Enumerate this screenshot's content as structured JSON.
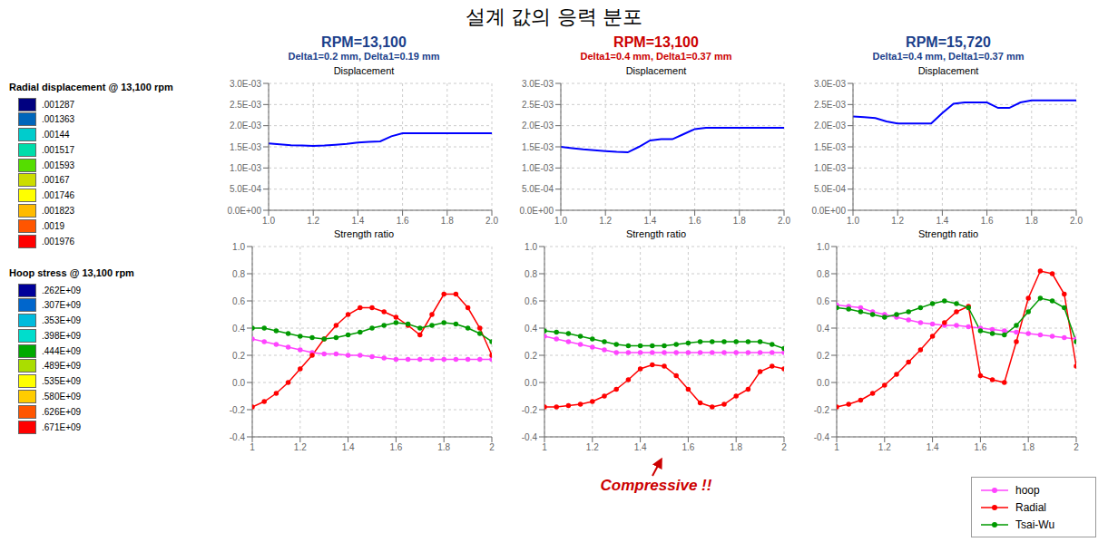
{
  "title": "설계 값의 응력 분포",
  "legend": "lower right",
  "colorbars": [
    {
      "title": "Radial displacement @ 13,100 rpm",
      "ticks": [
        {
          "value": 0.001287,
          "label": ".001287"
        },
        {
          "value": 0.001363,
          "label": ".001363"
        },
        {
          "value": 0.00144,
          "label": ".00144"
        },
        {
          "value": 0.001517,
          "label": ".001517"
        },
        {
          "value": 0.001593,
          "label": ".001593"
        },
        {
          "value": 0.00167,
          "label": ".00167"
        },
        {
          "value": 0.001746,
          "label": ".001746"
        },
        {
          "value": 0.001823,
          "label": ".001823"
        },
        {
          "value": 0.0019,
          "label": ".0019"
        },
        {
          "value": 0.001976,
          "label": ".001976"
        }
      ],
      "colors": [
        "#000080",
        "#0066BB",
        "#00CCCC",
        "#00DDAA",
        "#55DD00",
        "#CCDD00",
        "#FFFF00",
        "#FFBB00",
        "#FF5500",
        "#FF0000"
      ]
    },
    {
      "title": "Hoop stress @ 13,100 rpm",
      "ticks": [
        {
          "value": 262000000,
          "label": ".262E+09"
        },
        {
          "value": 307000000,
          "label": ".307E+09"
        },
        {
          "value": 353000000,
          "label": ".353E+09"
        },
        {
          "value": 398000000,
          "label": ".398E+09"
        },
        {
          "value": 444000000,
          "label": ".444E+09"
        },
        {
          "value": 489000000,
          "label": ".489E+09"
        },
        {
          "value": 535000000,
          "label": ".535E+09"
        },
        {
          "value": 580000000,
          "label": ".580E+09"
        },
        {
          "value": 626000000,
          "label": ".626E+09"
        },
        {
          "value": 671000000,
          "label": ".671E+09"
        }
      ],
      "colors": [
        "#000099",
        "#0066CC",
        "#00BBDD",
        "#00DDCC",
        "#00AA00",
        "#AADD00",
        "#FFFF00",
        "#FFCC00",
        "#FF5500",
        "#FF0000"
      ]
    }
  ],
  "columns": [
    {
      "title": "RPM=13,100",
      "subtitle": "Delta1=0.2 mm, Delta1=0.19 mm",
      "color": "#1B3F8B"
    },
    {
      "title": "RPM=13,100",
      "subtitle": "Delta1=0.4 mm, Delta1=0.37 mm",
      "color": "#CC0000"
    },
    {
      "title": "RPM=15,720",
      "subtitle": "Delta1=0.4 mm, Delta1=0.37 mm",
      "color": "#1B3F8B"
    }
  ],
  "chart_data": [
    {
      "type": "line",
      "title": "Displacement",
      "grid": true,
      "x": [
        1.0,
        1.05,
        1.1,
        1.15,
        1.2,
        1.25,
        1.3,
        1.35,
        1.4,
        1.45,
        1.5,
        1.55,
        1.6,
        1.65,
        1.7,
        1.75,
        1.8,
        1.85,
        1.9,
        1.95,
        2.0
      ],
      "xlim": [
        1.0,
        2.0
      ],
      "xticks": [
        {
          "value": 1.0,
          "label": "1.0"
        },
        1.2,
        1.4,
        1.6,
        1.8,
        {
          "value": 2.0,
          "label": "2.0"
        }
      ],
      "ylim": [
        0.0,
        0.003
      ],
      "yticks": [
        {
          "value": 0,
          "label": "0.0E+00"
        },
        {
          "value": 0.0005,
          "label": "5.0E-04"
        },
        {
          "value": 0.001,
          "label": "1.0E-03"
        },
        {
          "value": 0.0015,
          "label": "1.5E-03"
        },
        {
          "value": 0.002,
          "label": "2.0E-03"
        },
        {
          "value": 0.0025,
          "label": "2.5E-03"
        },
        {
          "value": 0.003,
          "label": "3.0E-03"
        }
      ],
      "series": [
        {
          "color": "#0000FF",
          "values": [
            0.00158,
            0.00156,
            0.00154,
            0.00153,
            0.00152,
            0.00153,
            0.00155,
            0.00157,
            0.0016,
            0.00162,
            0.00163,
            0.00175,
            0.00182,
            0.00182,
            0.00182,
            0.00182,
            0.00182,
            0.00182,
            0.00182,
            0.00182,
            0.00182
          ]
        }
      ]
    },
    {
      "type": "line",
      "title": "Strength ratio",
      "grid": true,
      "x": [
        1.0,
        1.05,
        1.1,
        1.15,
        1.2,
        1.25,
        1.3,
        1.35,
        1.4,
        1.45,
        1.5,
        1.55,
        1.6,
        1.65,
        1.7,
        1.75,
        1.8,
        1.85,
        1.9,
        1.95,
        2.0
      ],
      "xlim": [
        1.0,
        2.0
      ],
      "xticks": [
        1,
        1.2,
        1.4,
        1.6,
        1.8,
        2
      ],
      "ylim": [
        -0.4,
        1.0
      ],
      "yticks": [
        -0.4,
        -0.2,
        {
          "value": 0,
          "label": "0.0"
        },
        0.2,
        0.4,
        0.6,
        0.8,
        {
          "value": 1,
          "label": "1.0"
        }
      ],
      "series": [
        {
          "name": "hoop",
          "color": "#FF44FF",
          "marker": "circle",
          "values": [
            0.32,
            0.3,
            0.28,
            0.26,
            0.24,
            0.22,
            0.21,
            0.21,
            0.2,
            0.2,
            0.19,
            0.18,
            0.17,
            0.17,
            0.17,
            0.17,
            0.17,
            0.17,
            0.17,
            0.17,
            0.17
          ]
        },
        {
          "name": "Radial",
          "color": "#FF0000",
          "marker": "circle",
          "values": [
            -0.18,
            -0.14,
            -0.08,
            0.0,
            0.1,
            0.2,
            0.32,
            0.42,
            0.5,
            0.55,
            0.55,
            0.52,
            0.48,
            0.42,
            0.35,
            0.5,
            0.65,
            0.65,
            0.55,
            0.4,
            0.2
          ]
        },
        {
          "name": "Tsai-Wu",
          "color": "#009900",
          "marker": "circle",
          "values": [
            0.4,
            0.4,
            0.38,
            0.36,
            0.34,
            0.33,
            0.32,
            0.33,
            0.35,
            0.37,
            0.4,
            0.42,
            0.44,
            0.43,
            0.4,
            0.42,
            0.44,
            0.43,
            0.4,
            0.36,
            0.3
          ]
        }
      ]
    },
    {
      "type": "line",
      "title": "Displacement",
      "grid": true,
      "x": [
        1.0,
        1.05,
        1.1,
        1.15,
        1.2,
        1.25,
        1.3,
        1.35,
        1.4,
        1.45,
        1.5,
        1.55,
        1.6,
        1.65,
        1.7,
        1.75,
        1.8,
        1.85,
        1.9,
        1.95,
        2.0
      ],
      "xlim": [
        1.0,
        2.0
      ],
      "xticks": [
        {
          "value": 1.0,
          "label": "1.0"
        },
        1.2,
        1.4,
        1.6,
        1.8,
        {
          "value": 2.0,
          "label": "2.0"
        }
      ],
      "ylim": [
        0.0,
        0.003
      ],
      "yticks": [
        {
          "value": 0,
          "label": "0.0E+00"
        },
        {
          "value": 0.0005,
          "label": "5.0E-04"
        },
        {
          "value": 0.001,
          "label": "1.0E-03"
        },
        {
          "value": 0.0015,
          "label": "1.5E-03"
        },
        {
          "value": 0.002,
          "label": "2.0E-03"
        },
        {
          "value": 0.0025,
          "label": "2.5E-03"
        },
        {
          "value": 0.003,
          "label": "3.0E-03"
        }
      ],
      "series": [
        {
          "color": "#0000FF",
          "values": [
            0.0015,
            0.00147,
            0.00144,
            0.00142,
            0.0014,
            0.00138,
            0.00137,
            0.0015,
            0.00165,
            0.00168,
            0.00168,
            0.0018,
            0.00192,
            0.00195,
            0.00195,
            0.00195,
            0.00195,
            0.00195,
            0.00195,
            0.00195,
            0.00195
          ]
        }
      ]
    },
    {
      "type": "line",
      "title": "Strength ratio",
      "grid": true,
      "x": [
        1.0,
        1.05,
        1.1,
        1.15,
        1.2,
        1.25,
        1.3,
        1.35,
        1.4,
        1.45,
        1.5,
        1.55,
        1.6,
        1.65,
        1.7,
        1.75,
        1.8,
        1.85,
        1.9,
        1.95,
        2.0
      ],
      "xlim": [
        1.0,
        2.0
      ],
      "xticks": [
        1,
        1.2,
        1.4,
        1.6,
        1.8,
        2
      ],
      "ylim": [
        -0.4,
        1.0
      ],
      "yticks": [
        -0.4,
        -0.2,
        {
          "value": 0,
          "label": "0.0"
        },
        0.2,
        0.4,
        0.6,
        0.8,
        {
          "value": 1,
          "label": "1.0"
        }
      ],
      "annotations": [
        {
          "text": "Compressive !!",
          "color": "#CC0000"
        }
      ],
      "series": [
        {
          "name": "hoop",
          "color": "#FF44FF",
          "marker": "circle",
          "values": [
            0.34,
            0.32,
            0.3,
            0.28,
            0.26,
            0.24,
            0.22,
            0.22,
            0.22,
            0.22,
            0.22,
            0.22,
            0.22,
            0.22,
            0.22,
            0.22,
            0.22,
            0.22,
            0.22,
            0.22,
            0.22
          ]
        },
        {
          "name": "Radial",
          "color": "#FF0000",
          "marker": "circle",
          "values": [
            -0.18,
            -0.18,
            -0.17,
            -0.16,
            -0.14,
            -0.1,
            -0.05,
            0.02,
            0.1,
            0.13,
            0.12,
            0.05,
            -0.05,
            -0.15,
            -0.18,
            -0.16,
            -0.1,
            -0.05,
            0.08,
            0.12,
            0.1
          ]
        },
        {
          "name": "Tsai-Wu",
          "color": "#009900",
          "marker": "circle",
          "values": [
            0.38,
            0.37,
            0.36,
            0.34,
            0.32,
            0.3,
            0.28,
            0.27,
            0.27,
            0.27,
            0.27,
            0.28,
            0.29,
            0.3,
            0.3,
            0.3,
            0.3,
            0.3,
            0.3,
            0.28,
            0.25
          ]
        }
      ]
    },
    {
      "type": "line",
      "title": "Displacement",
      "grid": true,
      "x": [
        1.0,
        1.05,
        1.1,
        1.15,
        1.2,
        1.25,
        1.3,
        1.35,
        1.4,
        1.45,
        1.5,
        1.55,
        1.6,
        1.65,
        1.7,
        1.75,
        1.8,
        1.85,
        1.9,
        1.95,
        2.0
      ],
      "xlim": [
        1.0,
        2.0
      ],
      "xticks": [
        {
          "value": 1.0,
          "label": "1.0"
        },
        1.2,
        1.4,
        1.6,
        1.8,
        {
          "value": 2.0,
          "label": "2.0"
        }
      ],
      "ylim": [
        0.0,
        0.003
      ],
      "yticks": [
        {
          "value": 0,
          "label": "0.0E+00"
        },
        {
          "value": 0.0005,
          "label": "5.0E-04"
        },
        {
          "value": 0.001,
          "label": "1.0E-03"
        },
        {
          "value": 0.0015,
          "label": "1.5E-03"
        },
        {
          "value": 0.002,
          "label": "2.0E-03"
        },
        {
          "value": 0.0025,
          "label": "2.5E-03"
        },
        {
          "value": 0.003,
          "label": "3.0E-03"
        }
      ],
      "series": [
        {
          "color": "#0000FF",
          "values": [
            0.00222,
            0.0022,
            0.00218,
            0.0021,
            0.00205,
            0.00205,
            0.00205,
            0.00205,
            0.0023,
            0.00252,
            0.00255,
            0.00255,
            0.00255,
            0.00242,
            0.00242,
            0.00255,
            0.0026,
            0.0026,
            0.0026,
            0.0026,
            0.0026
          ]
        }
      ]
    },
    {
      "type": "line",
      "title": "Strength ratio",
      "grid": true,
      "x": [
        1.0,
        1.05,
        1.1,
        1.15,
        1.2,
        1.25,
        1.3,
        1.35,
        1.4,
        1.45,
        1.5,
        1.55,
        1.6,
        1.65,
        1.7,
        1.75,
        1.8,
        1.85,
        1.9,
        1.95,
        2.0
      ],
      "xlim": [
        1.0,
        2.0
      ],
      "xticks": [
        1,
        1.2,
        1.4,
        1.6,
        1.8,
        2
      ],
      "ylim": [
        -0.4,
        1.0
      ],
      "yticks": [
        -0.4,
        -0.2,
        {
          "value": 0,
          "label": "0.0"
        },
        0.2,
        0.4,
        0.6,
        0.8,
        {
          "value": 1,
          "label": "1.0"
        }
      ],
      "series": [
        {
          "name": "hoop",
          "color": "#FF44FF",
          "marker": "circle",
          "values": [
            0.57,
            0.56,
            0.55,
            0.52,
            0.5,
            0.48,
            0.46,
            0.44,
            0.43,
            0.42,
            0.42,
            0.41,
            0.4,
            0.39,
            0.38,
            0.37,
            0.36,
            0.35,
            0.34,
            0.33,
            0.32
          ]
        },
        {
          "name": "Radial",
          "color": "#FF0000",
          "marker": "circle",
          "values": [
            -0.18,
            -0.16,
            -0.13,
            -0.08,
            -0.02,
            0.06,
            0.15,
            0.24,
            0.34,
            0.44,
            0.52,
            0.56,
            0.05,
            0.02,
            0.0,
            0.3,
            0.62,
            0.82,
            0.8,
            0.65,
            0.12
          ]
        },
        {
          "name": "Tsai-Wu",
          "color": "#009900",
          "marker": "circle",
          "values": [
            0.55,
            0.54,
            0.52,
            0.5,
            0.48,
            0.5,
            0.52,
            0.55,
            0.58,
            0.6,
            0.58,
            0.55,
            0.38,
            0.36,
            0.35,
            0.42,
            0.52,
            0.62,
            0.6,
            0.55,
            0.3
          ]
        }
      ]
    }
  ]
}
